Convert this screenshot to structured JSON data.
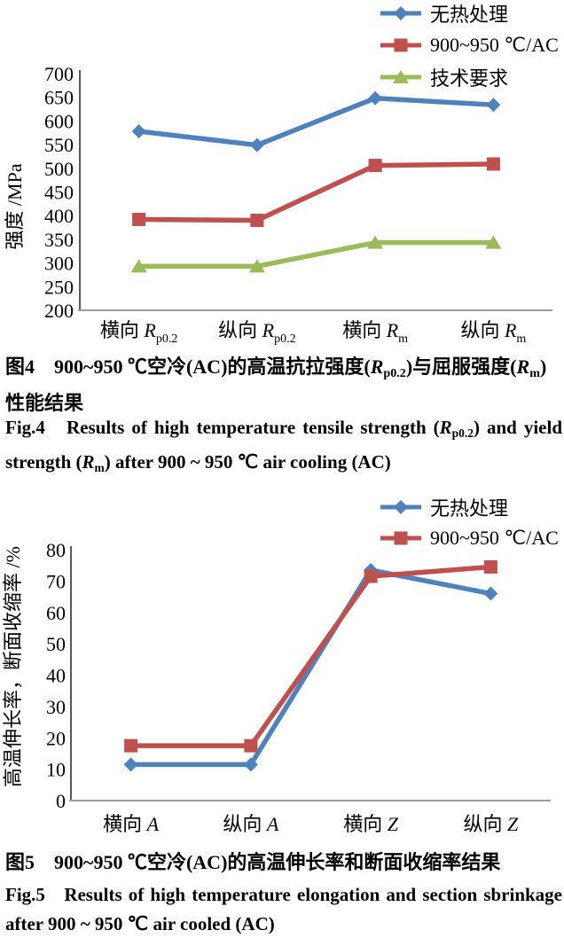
{
  "colors": {
    "axis_y": "#595959",
    "axis_x": "#9d9d9d",
    "text": "#000000",
    "series_blue": "#4F81BD",
    "series_red": "#C0504D",
    "series_green": "#9BBB59"
  },
  "chart_data": [
    {
      "id": "fig4",
      "type": "line",
      "title": "",
      "xlabel": "",
      "ylabel": "强度 /MPa",
      "ylim": [
        200,
        700
      ],
      "ytick": 50,
      "grid": false,
      "legend_position": "top-right",
      "categories": [
        "横向 Rp0.2",
        "纵向 Rp0.2",
        "横向 Rm",
        "纵向 Rm"
      ],
      "categories_rich": [
        [
          {
            "t": "横向 "
          },
          {
            "t": "R",
            "s": "i"
          },
          {
            "t": "p0.2",
            "s": "sub"
          }
        ],
        [
          {
            "t": "纵向 "
          },
          {
            "t": "R",
            "s": "i"
          },
          {
            "t": "p0.2",
            "s": "sub"
          }
        ],
        [
          {
            "t": "横向 "
          },
          {
            "t": "R",
            "s": "i"
          },
          {
            "t": "m",
            "s": "sub"
          }
        ],
        [
          {
            "t": "纵向 "
          },
          {
            "t": "R",
            "s": "i"
          },
          {
            "t": "m",
            "s": "sub"
          }
        ]
      ],
      "series": [
        {
          "name": "无热处理",
          "color": "#4F81BD",
          "marker": "diamond",
          "values": [
            578,
            549,
            648,
            634
          ]
        },
        {
          "name": "900~950 ℃/AC",
          "color": "#C0504D",
          "marker": "square",
          "values": [
            392,
            390,
            506,
            509
          ]
        },
        {
          "name": "技术要求",
          "color": "#9BBB59",
          "marker": "triangle",
          "values": [
            293,
            293,
            343,
            343
          ]
        }
      ]
    },
    {
      "id": "fig5",
      "type": "line",
      "title": "",
      "xlabel": "",
      "ylabel": "高温伸长率，断面收缩率 /%",
      "ylim": [
        0,
        80
      ],
      "ytick": 10,
      "grid": false,
      "legend_position": "top-right",
      "categories": [
        "横向 A",
        "纵向 A",
        "横向 Z",
        "纵向 Z"
      ],
      "categories_rich": [
        [
          {
            "t": "横向 "
          },
          {
            "t": "A",
            "s": "i"
          }
        ],
        [
          {
            "t": "纵向 "
          },
          {
            "t": "A",
            "s": "i"
          }
        ],
        [
          {
            "t": "横向 "
          },
          {
            "t": "Z",
            "s": "i"
          }
        ],
        [
          {
            "t": "纵向 "
          },
          {
            "t": "Z",
            "s": "i"
          }
        ]
      ],
      "series": [
        {
          "name": "无热处理",
          "color": "#4F81BD",
          "marker": "diamond",
          "values": [
            11.5,
            11.5,
            73.5,
            66
          ]
        },
        {
          "name": "900~950 ℃/AC",
          "color": "#C0504D",
          "marker": "square",
          "values": [
            17.5,
            17.5,
            71.5,
            74.5
          ]
        }
      ]
    }
  ],
  "captions": {
    "fig4_zh": [
      {
        "t": "图4"
      },
      {
        "t": "　"
      },
      {
        "t": "900~950 ℃空冷(AC)的高温抗拉强度("
      },
      {
        "t": "R",
        "s": "i"
      },
      {
        "t": "p0.2",
        "s": "sub"
      },
      {
        "t": ")与屈服强度("
      },
      {
        "t": "R",
        "s": "i"
      },
      {
        "t": "m",
        "s": "sub"
      },
      {
        "t": ")性能结果"
      }
    ],
    "fig4_en": [
      {
        "t": "Fig.4"
      },
      {
        "t": "   "
      },
      {
        "t": "Results of high temperature tensile strength ("
      },
      {
        "t": "R",
        "s": "i"
      },
      {
        "t": "p0.2",
        "s": "sub"
      },
      {
        "t": ") and yield strength ("
      },
      {
        "t": "R",
        "s": "i"
      },
      {
        "t": "m",
        "s": "sub"
      },
      {
        "t": ") after 900 ~ 950 ℃ air cooling (AC)"
      }
    ],
    "fig5_zh": [
      {
        "t": "图5"
      },
      {
        "t": "　"
      },
      {
        "t": "900~950 ℃空冷(AC)的高温伸长率和断面收缩率结果"
      }
    ],
    "fig5_en": [
      {
        "t": "Fig.5"
      },
      {
        "t": "   "
      },
      {
        "t": "Results of high temperature elongation and section sbrinkage after 900 ~ 950 ℃ air cooled (AC)"
      }
    ]
  }
}
